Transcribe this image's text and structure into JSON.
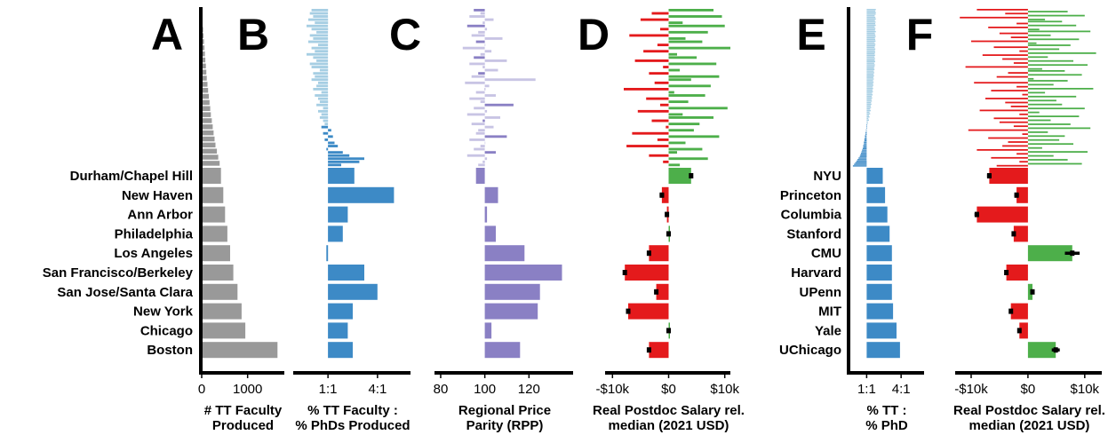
{
  "chart_data": [
    {
      "type": "bar",
      "id": "A",
      "panel_letter": "A",
      "orientation": "horizontal",
      "categories": [
        "Durham/Chapel Hill",
        "New Haven",
        "Ann Arbor",
        "Philadelphia",
        "Los Angeles",
        "San Francisco/Berkeley",
        "San Jose/Santa Clara",
        "New York",
        "Chicago",
        "Boston"
      ],
      "values": [
        420,
        470,
        510,
        560,
        620,
        690,
        780,
        870,
        950,
        1650
      ],
      "background_values": [
        0,
        10,
        20,
        30,
        40,
        50,
        60,
        70,
        80,
        90,
        100,
        110,
        125,
        140,
        155,
        170,
        185,
        200,
        220,
        240,
        260,
        280,
        300,
        330,
        360,
        390
      ],
      "xlim": [
        0,
        1800
      ],
      "xticks": [
        "0",
        "1000"
      ],
      "xlabel": "# TT Faculty\nProduced",
      "bar_color": "#999999",
      "background_color": "#999999"
    },
    {
      "type": "bar",
      "id": "B",
      "panel_letter": "B",
      "orientation": "horizontal",
      "categories": [
        "Durham/Chapel Hill",
        "New Haven",
        "Ann Arbor",
        "Philadelphia",
        "Los Angeles",
        "San Francisco/Berkeley",
        "San Jose/Santa Clara",
        "New York",
        "Chicago",
        "Boston"
      ],
      "values": [
        1.6,
        4.0,
        1.2,
        0.9,
        -0.1,
        2.2,
        3.0,
        1.5,
        1.2,
        1.5
      ],
      "background_values": [
        -1,
        -1.1,
        -0.9,
        -1.2,
        -0.8,
        -1.3,
        -1.0,
        -0.7,
        -1.1,
        -0.9,
        -1.2,
        -0.6,
        -1.0,
        -0.8,
        -1.3,
        -0.9,
        -0.7,
        -1.1,
        -1.0,
        -0.5,
        -0.9,
        -0.8,
        -1.0,
        -0.6,
        -0.7,
        -0.9,
        -0.4,
        -0.8,
        -0.6,
        -0.5,
        -0.7,
        -0.3,
        -0.6,
        -0.4,
        -0.5,
        -0.3,
        -0.2,
        -0.4,
        0.2,
        -0.3,
        0.3,
        -0.2,
        0.4,
        0.6,
        -0.1,
        0.9,
        1.3,
        2.2,
        1.9,
        0.8
      ],
      "xlim": [
        -2.0,
        5.0
      ],
      "xticks": [
        "1:1",
        "4:1"
      ],
      "xlabel": "% TT Faculty :\n% PhDs Produced",
      "bar_color": "#3d8ac6",
      "background_color_light": "#a6cee3",
      "background_color_dark": "#3d8ac6"
    },
    {
      "type": "bar",
      "id": "C",
      "panel_letter": "C",
      "orientation": "horizontal",
      "categories": [
        "Durham/Chapel Hill",
        "New Haven",
        "Ann Arbor",
        "Philadelphia",
        "Los Angeles",
        "San Francisco/Berkeley",
        "San Jose/Santa Clara",
        "New York",
        "Chicago",
        "Boston"
      ],
      "values": [
        96,
        106,
        101,
        105,
        118,
        135,
        125,
        124,
        103,
        116
      ],
      "background_values": [
        95,
        98,
        93,
        104,
        99,
        92,
        101,
        97,
        94,
        108,
        96,
        100,
        90,
        103,
        98,
        95,
        110,
        93,
        99,
        106,
        97,
        94,
        123,
        91,
        102,
        100,
        96,
        105,
        93,
        98,
        113,
        95,
        101,
        92,
        107,
        99,
        94,
        104,
        97,
        96,
        110,
        93,
        100,
        98,
        95,
        105,
        92,
        101,
        99,
        97
      ],
      "xlim": [
        78,
        140
      ],
      "xticks": [
        "80",
        "100",
        "120"
      ],
      "xlabel": "Regional Price\nParity (RPP)",
      "bar_color": "#8a80c4",
      "light_color": "#c8c4e4"
    },
    {
      "type": "bar",
      "id": "D",
      "panel_letter": "D",
      "orientation": "horizontal",
      "categories": [
        "Durham/Chapel Hill",
        "New Haven",
        "Ann Arbor",
        "Philadelphia",
        "Los Angeles",
        "San Francisco/Berkeley",
        "San Jose/Santa Clara",
        "New York",
        "Chicago",
        "Boston"
      ],
      "values": [
        4000,
        -1200,
        -300,
        0,
        -3500,
        -7800,
        -2200,
        -7200,
        0,
        -3500
      ],
      "errors": [
        250,
        400,
        150,
        300,
        300,
        250,
        300,
        250,
        400,
        250
      ],
      "background_values": [
        8000,
        -3000,
        9500,
        -5000,
        2500,
        10000,
        -1500,
        7000,
        -7000,
        3000,
        6000,
        -2000,
        11000,
        -4500,
        1500,
        5000,
        -6000,
        8500,
        -1000,
        2000,
        -3500,
        9000,
        4000,
        -2500,
        7500,
        -8000,
        1000,
        6500,
        -4000,
        3500,
        -1500,
        10500,
        -5500,
        2500,
        8000,
        -3000,
        5500,
        -500,
        4500,
        -6500,
        9000,
        -2000,
        3000,
        -7500,
        6000,
        1500,
        -3500,
        7000,
        -1000,
        2000
      ],
      "xlim": [
        -11000,
        11000
      ],
      "xticks": [
        "-$10k",
        "$0",
        "$10k"
      ],
      "xlabel": "Real Postdoc Salary rel.\nmedian (2021 USD)",
      "positive_color": "#4daf4a",
      "negative_color": "#e41a1c"
    },
    {
      "type": "bar",
      "id": "E",
      "panel_letter": "E",
      "orientation": "horizontal",
      "categories": [
        "NYU",
        "Princeton",
        "Columbia",
        "Stanford",
        "CMU",
        "Harvard",
        "UPenn",
        "MIT",
        "Yale",
        "UChicago"
      ],
      "values": [
        1.4,
        1.6,
        1.8,
        2.0,
        2.2,
        2.2,
        2.2,
        2.3,
        2.6,
        2.9
      ],
      "background_values": [
        0.8,
        0.75,
        0.8,
        0.78,
        0.7,
        0.76,
        0.8,
        0.72,
        0.77,
        0.74,
        0.79,
        0.7,
        0.76,
        0.73,
        0.8,
        0.71,
        0.75,
        0.78,
        0.72,
        0.74,
        0.77,
        0.7,
        0.76,
        0.73,
        0.69,
        0.75,
        0.72,
        0.74,
        0.7,
        0.73,
        0.68,
        0.72,
        0.7,
        0.74,
        0.66,
        0.71,
        0.69,
        0.64,
        0.68,
        0.62,
        0.66,
        0.6,
        0.64,
        0.58,
        0.62,
        0.56,
        0.6,
        0.55,
        0.58,
        0.53,
        0.56,
        0.5,
        0.54,
        0.47,
        0.52,
        0.44,
        0.48,
        0.42,
        0.45,
        0.38,
        0.42,
        0.35,
        0.38,
        0.3,
        0.35,
        0.25,
        0.3,
        0.2,
        0.25,
        0.15,
        0.2,
        0.1,
        0.1,
        0.05,
        0.05,
        0.0,
        -0.05,
        -0.05,
        -0.1,
        -0.1,
        -0.15,
        -0.15,
        -0.2,
        -0.2,
        -0.25,
        -0.25,
        -0.3,
        -0.3,
        -0.35,
        -0.4,
        -0.45,
        -0.5,
        -0.55,
        -0.6,
        -0.7,
        -0.8,
        -0.9,
        -1.0,
        -1.1,
        -1.2
      ],
      "xlim": [
        -1.5,
        5.0
      ],
      "xticks": [
        "1:1",
        "4:1"
      ],
      "xlabel": "% TT :\n% PhD",
      "bar_color": "#3d8ac6",
      "background_color_light": "#a6cee3",
      "background_color_dark": "#3d8ac6"
    },
    {
      "type": "bar",
      "id": "F",
      "panel_letter": "F",
      "orientation": "horizontal",
      "categories": [
        "NYU",
        "Princeton",
        "Columbia",
        "Stanford",
        "CMU",
        "Harvard",
        "UPenn",
        "MIT",
        "Yale",
        "UChicago"
      ],
      "values": [
        -6800,
        -2000,
        -9000,
        -2500,
        7800,
        -3800,
        800,
        -3000,
        -1500,
        4900
      ],
      "errors": [
        400,
        400,
        400,
        300,
        1300,
        300,
        300,
        300,
        300,
        700
      ],
      "background_values": [
        -9000,
        7000,
        -4000,
        10000,
        -12000,
        3000,
        6000,
        -2000,
        8500,
        -7000,
        2000,
        11000,
        -5000,
        4000,
        -3000,
        9000,
        -10000,
        1500,
        7500,
        -6000,
        5500,
        -1500,
        12000,
        -8000,
        3500,
        -4500,
        8000,
        -2500,
        10500,
        -11000,
        2500,
        6500,
        -3500,
        9500,
        -5500,
        1000,
        7000,
        -9500,
        4500,
        -2000,
        11500,
        -6500,
        3000,
        -1000,
        8500,
        -7500,
        5000,
        -4000,
        6000,
        -3000,
        10000,
        -8500,
        2000,
        -1500,
        9000,
        -6000,
        4000,
        -5000,
        7500,
        -2500,
        11000,
        -10500,
        3500,
        -1000,
        6500,
        -7000,
        5500,
        -3500,
        8000,
        -4500,
        2500,
        -9000,
        10500,
        -2000,
        4500,
        -6500,
        7000,
        -1500,
        9500,
        -5500
      ],
      "xlim": [
        -12500,
        13000
      ],
      "xticks": [
        "-$10k",
        "$0",
        "$10k"
      ],
      "xlabel": "Real Postdoc Salary rel.\nmedian (2021 USD)",
      "positive_color": "#4daf4a",
      "negative_color": "#e41a1c"
    }
  ]
}
